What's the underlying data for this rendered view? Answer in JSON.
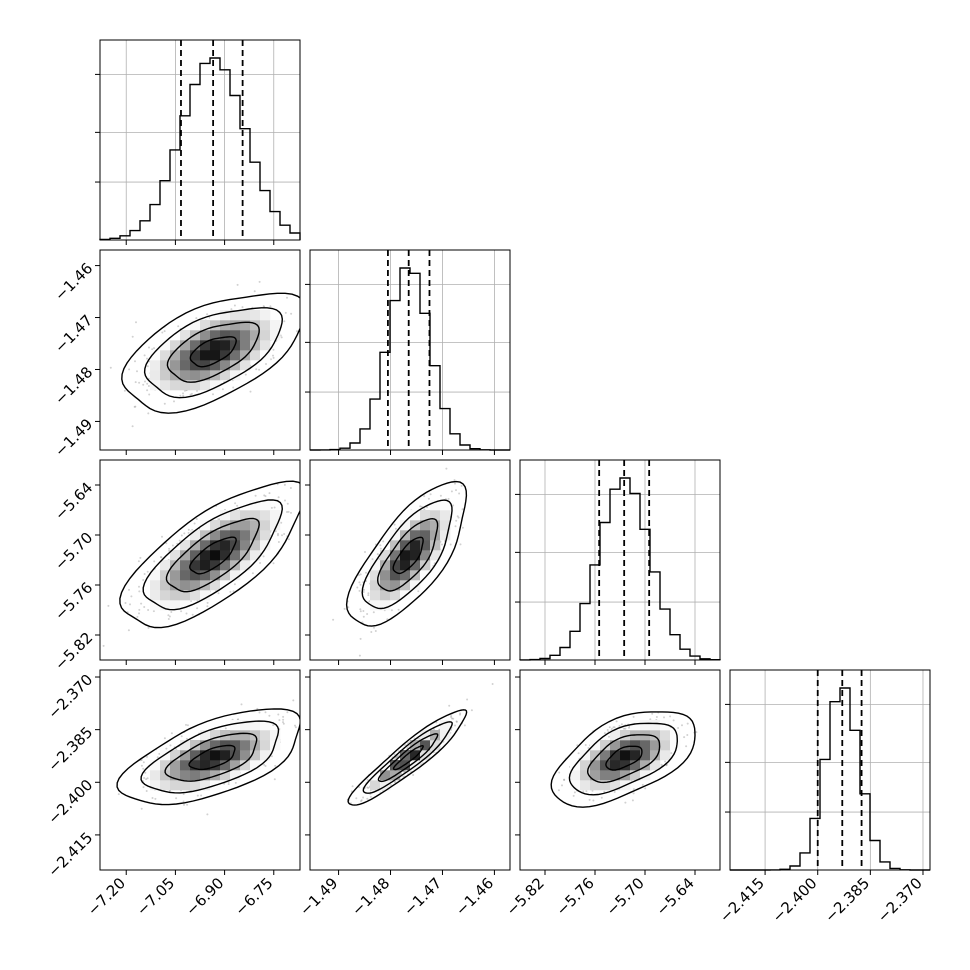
{
  "chart_data": {
    "type": "corner",
    "description_of_layout": "lower-triangular grid of 1D histograms (diagonal) and 2D density/contour plots (below diagonal)",
    "params": [
      {
        "id": "p0",
        "ticks": [
          -7.2,
          -7.05,
          -6.9,
          -6.75
        ],
        "tick_labels": [
          "−7.20",
          "−7.05",
          "−6.90",
          "−6.75"
        ],
        "range": [
          -7.28,
          -6.67
        ],
        "mean": -6.935,
        "sd": 0.0975,
        "quantiles": [
          -7.033,
          -6.935,
          -6.845
        ]
      },
      {
        "id": "p1",
        "ticks": [
          -1.49,
          -1.48,
          -1.47,
          -1.46
        ],
        "tick_labels": [
          "−1.49",
          "−1.48",
          "−1.47",
          "−1.46"
        ],
        "range": [
          -1.4955,
          -1.457
        ],
        "mean": -1.4765,
        "sd": 0.004,
        "quantiles": [
          -1.4805,
          -1.4765,
          -1.4725
        ]
      },
      {
        "id": "p2",
        "ticks": [
          -5.82,
          -5.76,
          -5.7,
          -5.64
        ],
        "tick_labels": [
          "−5.82",
          "−5.76",
          "−5.70",
          "−5.64"
        ],
        "range": [
          -5.85,
          -5.61
        ],
        "mean": -5.725,
        "sd": 0.0305,
        "quantiles": [
          -5.755,
          -5.725,
          -5.695
        ]
      },
      {
        "id": "p3",
        "ticks": [
          -2.415,
          -2.4,
          -2.385,
          -2.37
        ],
        "tick_labels": [
          "−2.415",
          "−2.400",
          "−2.385",
          "−2.370"
        ],
        "range": [
          -2.425,
          -2.368
        ],
        "mean": -2.393,
        "sd": 0.0048,
        "quantiles": [
          -2.4,
          -2.393,
          -2.3875
        ]
      }
    ],
    "correlations": {
      "1_0": 0.55,
      "2_0": 0.72,
      "2_1": 0.72,
      "3_0": 0.6,
      "3_1": 0.93,
      "3_2": 0.55
    },
    "histogram_bins": 20,
    "quantile_style": "dashed",
    "grid": true,
    "colors": {
      "line": "#000000",
      "grid": "#b0b0b0",
      "points": "#9a9a9a"
    }
  }
}
